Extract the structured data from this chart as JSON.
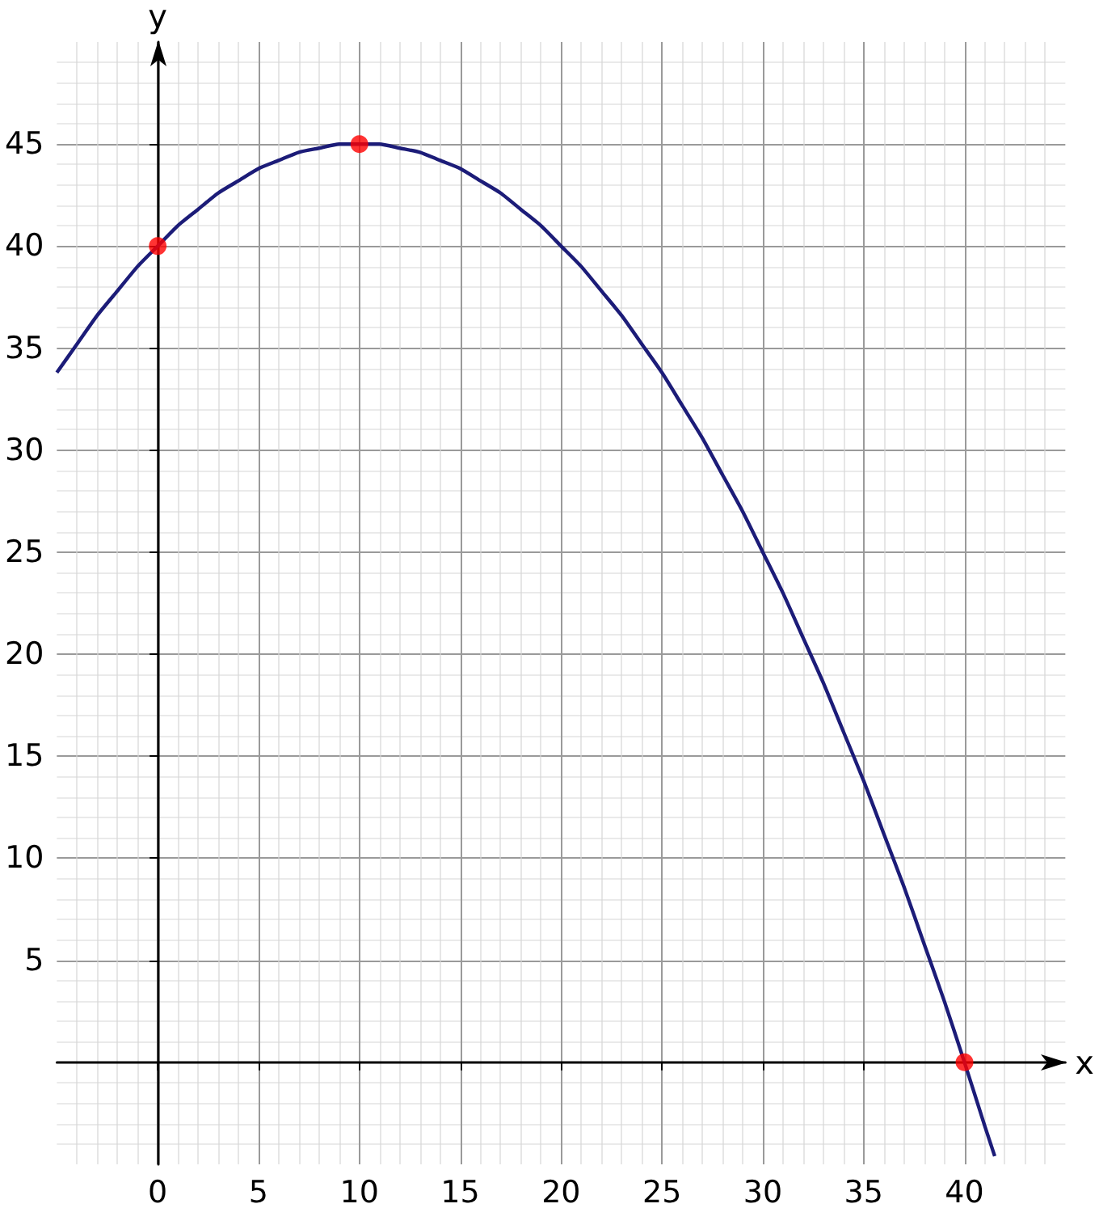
{
  "chart_data": {
    "type": "line",
    "xlabel": "x",
    "ylabel": "y",
    "xlim": [
      -5,
      45
    ],
    "ylim": [
      -5,
      50
    ],
    "xticks": [
      0,
      5,
      10,
      15,
      20,
      25,
      30,
      35,
      40
    ],
    "yticks": [
      5,
      10,
      15,
      20,
      25,
      30,
      35,
      40,
      45
    ],
    "grid": true,
    "series": [
      {
        "color": "#1c1c78",
        "marker": "none",
        "x": [
          -5,
          -4,
          -3,
          -2,
          -1,
          0,
          1,
          2,
          3,
          4,
          5,
          6,
          7,
          8,
          9,
          11,
          12,
          13,
          14,
          15,
          16,
          17,
          18,
          19,
          20,
          21,
          22,
          23,
          24,
          25,
          26,
          27,
          28,
          29,
          30,
          31,
          32,
          33,
          34,
          35,
          36,
          37,
          38,
          39,
          40,
          41,
          41.5
        ],
        "values": [
          33.8,
          35.2,
          36.6,
          37.8,
          39.0,
          40,
          41.0,
          41.8,
          42.6,
          43.2,
          43.8,
          44.2,
          44.6,
          44.8,
          45.0,
          45.0,
          44.8,
          44.6,
          44.2,
          43.8,
          43.2,
          42.6,
          41.8,
          41.0,
          40,
          39.0,
          37.8,
          36.6,
          35.2,
          33.8,
          32.2,
          30.6,
          28.8,
          27.0,
          25,
          23.0,
          20.8,
          18.6,
          16.2,
          13.8,
          11.2,
          8.6,
          5.8,
          3.0,
          0,
          -3.1,
          -4.6
        ]
      },
      {
        "type": "scatter",
        "color": "#ff0000",
        "marker": "circle",
        "x": [
          0,
          10,
          40
        ],
        "values": [
          40,
          45,
          0
        ]
      }
    ]
  }
}
